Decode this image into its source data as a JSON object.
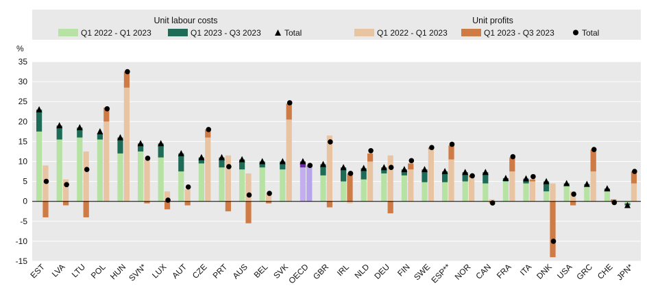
{
  "chart_data": {
    "type": "bar",
    "ylabel": "%",
    "ylim": [
      -15,
      35
    ],
    "yticks": [
      35,
      30,
      25,
      20,
      15,
      10,
      5,
      0,
      -5,
      -10,
      -15
    ],
    "grid": true,
    "legend_position": "top",
    "legend_groups": [
      "Unit labour costs",
      "Unit profits"
    ],
    "categories": [
      "EST",
      "LVA",
      "LTU",
      "POL",
      "HUN",
      "SVN*",
      "LUX",
      "AUT",
      "CZE",
      "PRT",
      "AUS",
      "BEL",
      "SVK",
      "OECD",
      "GBR",
      "IRL",
      "NLD",
      "DEU",
      "FIN",
      "SWE",
      "ESP**",
      "NOR",
      "CAN",
      "FRA",
      "ITA",
      "DNK",
      "USA",
      "GRC",
      "CHE",
      "JPN*"
    ],
    "highlight_category": "OECD",
    "series": [
      {
        "name": "Q1 2022 - Q1 2023",
        "group": "Unit labour costs",
        "kind": "bar",
        "color": "#b6e3a3",
        "highlight_color": "#c3aef0",
        "values": [
          17.5,
          15.5,
          16,
          15.5,
          12,
          12.5,
          11,
          7.5,
          9.5,
          8.5,
          8,
          8.5,
          8,
          8.5,
          6.5,
          5,
          5.5,
          7,
          6.5,
          4.8,
          4.8,
          5,
          4.5,
          5,
          4.5,
          2.5,
          3.8,
          4,
          2.5,
          -0.5
        ]
      },
      {
        "name": "Q1 2023 - Q3 2023",
        "group": "Unit labour costs",
        "kind": "bar",
        "color": "#1e6b58",
        "highlight_color": "#6c2ba8",
        "values": [
          5.5,
          3.5,
          2.5,
          1.5,
          4,
          2,
          3.5,
          4.5,
          1.5,
          2.5,
          2.5,
          1.5,
          2,
          1.5,
          2.8,
          3.5,
          2.8,
          1.5,
          1.5,
          3.2,
          2.7,
          2.3,
          2.8,
          0.8,
          1.2,
          2.5,
          0.7,
          0.3,
          0.7,
          -0.5
        ]
      },
      {
        "name": "Total",
        "group": "Unit labour costs",
        "kind": "marker",
        "marker": "triangle",
        "color": "#000000",
        "values": [
          23,
          19,
          18.5,
          17.5,
          16,
          14.5,
          14.5,
          12,
          11,
          11,
          10.5,
          10,
          10,
          10,
          9.3,
          8.5,
          8.3,
          8.5,
          8,
          8,
          7.5,
          7.3,
          7.3,
          5.8,
          5.7,
          5,
          4.5,
          4.3,
          3.2,
          -1
        ]
      },
      {
        "name": "Q1 2022 - Q1 2023",
        "group": "Unit profits",
        "kind": "bar",
        "color": "#e8c4a2",
        "highlight_color": "#b8a4e8",
        "values": [
          9,
          5.5,
          12.5,
          20,
          28.5,
          10.5,
          2.5,
          3,
          16,
          11.5,
          7,
          2,
          20.5,
          8.5,
          16.5,
          -0.5,
          10,
          11.5,
          8,
          13,
          10.5,
          6,
          0.5,
          7.5,
          5,
          4.5,
          2.5,
          7.5,
          -0.5,
          4.5
        ]
      },
      {
        "name": "Q1 2023 - Q3 2023",
        "group": "Unit profits",
        "kind": "bar",
        "color": "#cf7b45",
        "highlight_color": "#9a88cc",
        "values": [
          -4,
          -1,
          -4,
          3.5,
          4,
          -0.5,
          -2,
          -1,
          2,
          -2.5,
          -5.5,
          -0.5,
          4,
          0.5,
          -1.5,
          7,
          2,
          -3,
          1.5,
          0.5,
          3.5,
          0.5,
          -0.5,
          3.5,
          0.5,
          -14,
          -1,
          5.5,
          0.5,
          3
        ]
      },
      {
        "name": "Total",
        "group": "Unit profits",
        "kind": "marker",
        "marker": "circle",
        "color": "#000000",
        "values": [
          5,
          4.2,
          8,
          23.2,
          32.5,
          10.8,
          0.3,
          3.6,
          18,
          8.7,
          1.6,
          2,
          24.7,
          9,
          14.9,
          7,
          12.7,
          8.5,
          10.2,
          13.5,
          14.3,
          6.4,
          -0.4,
          11.2,
          6.2,
          -10,
          1.8,
          13,
          -0.3,
          7.5
        ]
      }
    ]
  }
}
